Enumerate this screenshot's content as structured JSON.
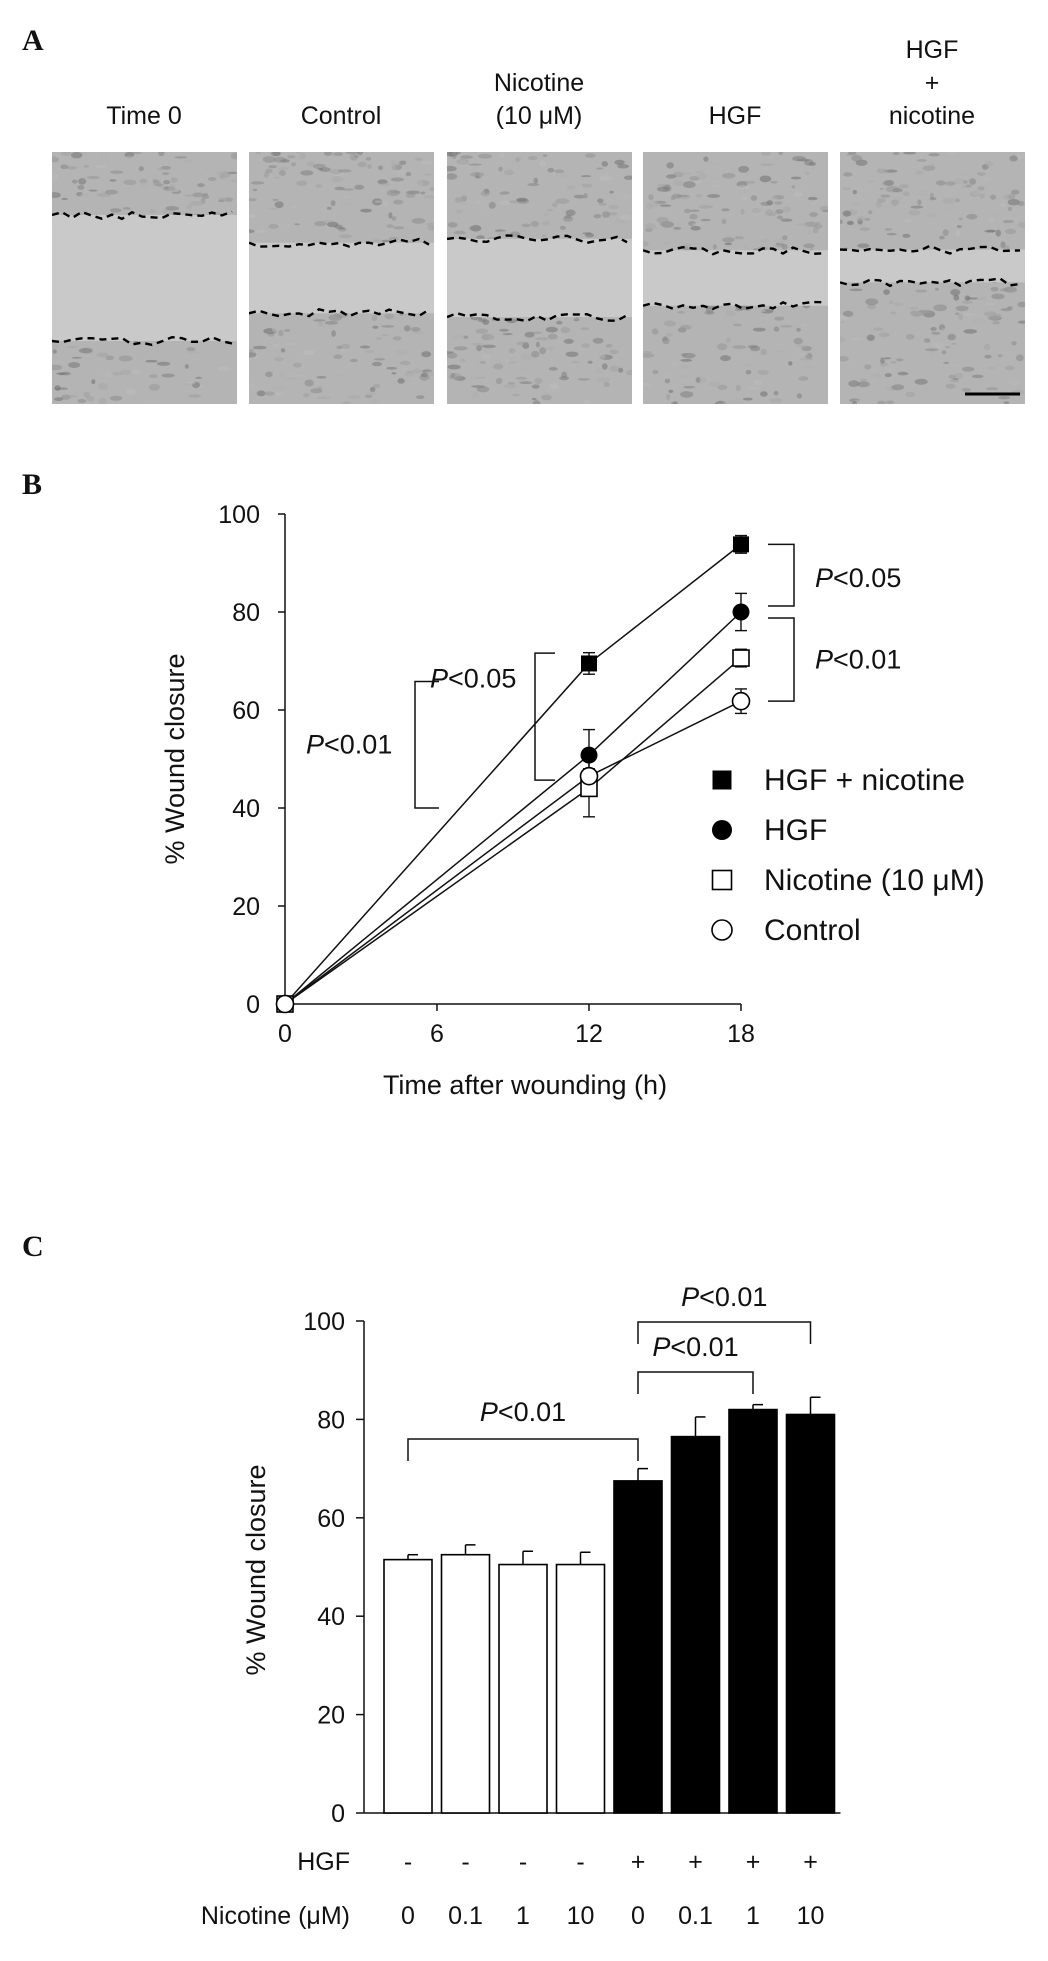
{
  "panels": {
    "a": "A",
    "b": "B",
    "c": "C"
  },
  "panel_a": {
    "images": [
      {
        "label_lines": [
          "Time 0"
        ]
      },
      {
        "label_lines": [
          "Control"
        ]
      },
      {
        "label_lines": [
          "Nicotine",
          "(10 μM)"
        ]
      },
      {
        "label_lines": [
          "HGF"
        ]
      },
      {
        "label_lines": [
          "HGF",
          "+",
          "nicotine"
        ]
      }
    ],
    "wound_fraction": [
      0.5,
      0.28,
      0.31,
      0.22,
      0.13
    ]
  },
  "chart_data": [
    {
      "type": "line",
      "xlabel": "Time after wounding (h)",
      "ylabel": "% Wound closure",
      "x": [
        0,
        12,
        18
      ],
      "xticks": [
        0,
        6,
        12,
        18
      ],
      "yticks": [
        0,
        20,
        40,
        60,
        80,
        100
      ],
      "xlim": [
        0,
        18
      ],
      "ylim": [
        0,
        100
      ],
      "grid": false,
      "legend_position": "right",
      "series": [
        {
          "name": "HGF + nicotine",
          "marker": "filled-square",
          "values": [
            0,
            69.5,
            93.8
          ],
          "errors": [
            0,
            2.2,
            1.8
          ]
        },
        {
          "name": "HGF",
          "marker": "filled-circle",
          "values": [
            0,
            50.8,
            80.0
          ],
          "errors": [
            0,
            5.2,
            3.8
          ]
        },
        {
          "name": "Nicotine (10 μM)",
          "marker": "open-square",
          "values": [
            0,
            44.0,
            70.6
          ],
          "errors": [
            0,
            5.8,
            1.8
          ]
        },
        {
          "name": "Control",
          "marker": "open-circle",
          "values": [
            0,
            46.5,
            61.8
          ],
          "errors": [
            0,
            1.5,
            2.5
          ]
        }
      ],
      "annotations": [
        {
          "italic": "P",
          "text": "<0.05",
          "between": [
            "HGF + nicotine",
            "HGF"
          ],
          "at_x": 18
        },
        {
          "italic": "P",
          "text": "<0.01",
          "between": [
            "HGF",
            "Control"
          ],
          "at_x": 18
        },
        {
          "italic": "P",
          "text": "<0.05",
          "between": [
            "HGF",
            "Control"
          ],
          "at_x": 12
        },
        {
          "italic": "P",
          "text": "<0.01",
          "between": [
            "HGF + nicotine",
            "Control"
          ],
          "at_x": 12
        }
      ]
    },
    {
      "type": "bar",
      "ylabel": "% Wound closure",
      "yticks": [
        0,
        20,
        40,
        60,
        80,
        100
      ],
      "ylim": [
        0,
        100
      ],
      "grid": false,
      "row_labels": [
        "HGF",
        "Nicotine (μM)"
      ],
      "categories": [
        {
          "hgf": "-",
          "nicotine": "0"
        },
        {
          "hgf": "-",
          "nicotine": "0.1"
        },
        {
          "hgf": "-",
          "nicotine": "1"
        },
        {
          "hgf": "-",
          "nicotine": "10"
        },
        {
          "hgf": "+",
          "nicotine": "0"
        },
        {
          "hgf": "+",
          "nicotine": "0.1"
        },
        {
          "hgf": "+",
          "nicotine": "1"
        },
        {
          "hgf": "+",
          "nicotine": "10"
        }
      ],
      "values": [
        51.5,
        52.5,
        50.5,
        50.5,
        67.5,
        76.5,
        82.0,
        81.0
      ],
      "errors": [
        1.0,
        2.0,
        2.7,
        2.5,
        2.5,
        4.0,
        1.0,
        3.5
      ],
      "fills": [
        "white",
        "white",
        "white",
        "white",
        "black",
        "black",
        "black",
        "black"
      ],
      "annotations": [
        {
          "italic": "P",
          "text": "<0.01",
          "from_bar": 1,
          "to_bar": 5
        },
        {
          "italic": "P",
          "text": "<0.01",
          "from_bar": 5,
          "to_bar": 7
        },
        {
          "italic": "P",
          "text": "<0.01",
          "from_bar": 5,
          "to_bar": 8
        }
      ]
    }
  ]
}
